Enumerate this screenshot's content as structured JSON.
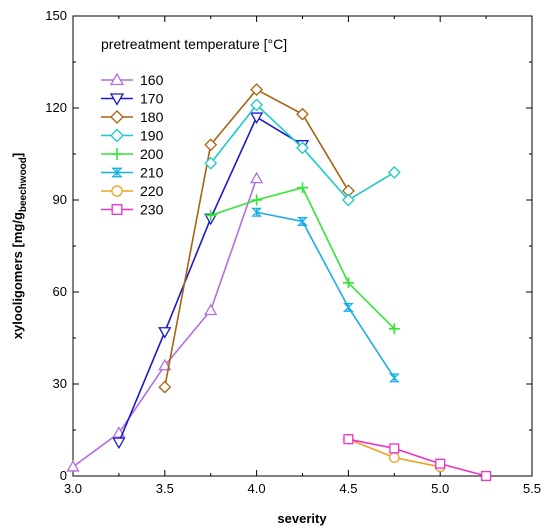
{
  "chart_data": {
    "type": "line",
    "xlabel": "severity",
    "ylabel_main": "xylooligomers [mg/g",
    "ylabel_sub": "beechwood",
    "ylabel_end": "]",
    "xlim": [
      3.0,
      5.5
    ],
    "ylim": [
      0,
      150
    ],
    "x_ticks": [
      "3.0",
      "3.5",
      "4.0",
      "4.5",
      "5.0",
      "5.5"
    ],
    "y_ticks": [
      "0",
      "30",
      "60",
      "90",
      "120",
      "150"
    ],
    "grid": false,
    "legend_title": "pretreatment temperature [°C]",
    "legend_position": "top-left",
    "series": [
      {
        "name": "160",
        "color": "#b36fe0",
        "marker": "triangle-up",
        "points": [
          [
            3.0,
            3
          ],
          [
            3.25,
            14
          ],
          [
            3.5,
            36
          ],
          [
            3.75,
            54
          ],
          [
            4.0,
            97
          ]
        ]
      },
      {
        "name": "170",
        "color": "#1a1acc",
        "marker": "triangle-down",
        "points": [
          [
            3.25,
            11
          ],
          [
            3.5,
            47
          ],
          [
            3.75,
            84
          ],
          [
            4.0,
            117
          ],
          [
            4.25,
            108
          ]
        ]
      },
      {
        "name": "180",
        "color": "#a8630f",
        "marker": "diamond",
        "points": [
          [
            3.5,
            29
          ],
          [
            3.75,
            108
          ],
          [
            4.0,
            126
          ],
          [
            4.25,
            118
          ],
          [
            4.5,
            93
          ]
        ]
      },
      {
        "name": "190",
        "color": "#1ec8c8",
        "marker": "diamond",
        "points": [
          [
            3.75,
            102
          ],
          [
            4.0,
            121
          ],
          [
            4.25,
            107
          ],
          [
            4.5,
            90
          ],
          [
            4.75,
            99
          ]
        ]
      },
      {
        "name": "200",
        "color": "#33e633",
        "marker": "plus",
        "points": [
          [
            3.75,
            85
          ],
          [
            4.0,
            90
          ],
          [
            4.25,
            94
          ],
          [
            4.5,
            63
          ],
          [
            4.75,
            48
          ]
        ]
      },
      {
        "name": "210",
        "color": "#1aaee6",
        "marker": "bowtie",
        "points": [
          [
            4.0,
            86
          ],
          [
            4.25,
            83
          ],
          [
            4.5,
            55
          ],
          [
            4.75,
            32
          ]
        ]
      },
      {
        "name": "220",
        "color": "#f0a020",
        "marker": "circle",
        "points": [
          [
            4.5,
            12
          ],
          [
            4.75,
            6
          ],
          [
            5.0,
            3
          ]
        ]
      },
      {
        "name": "230",
        "color": "#f030c8",
        "marker": "square",
        "points": [
          [
            4.5,
            12
          ],
          [
            4.75,
            9
          ],
          [
            5.0,
            4
          ],
          [
            5.25,
            0
          ]
        ]
      }
    ]
  }
}
